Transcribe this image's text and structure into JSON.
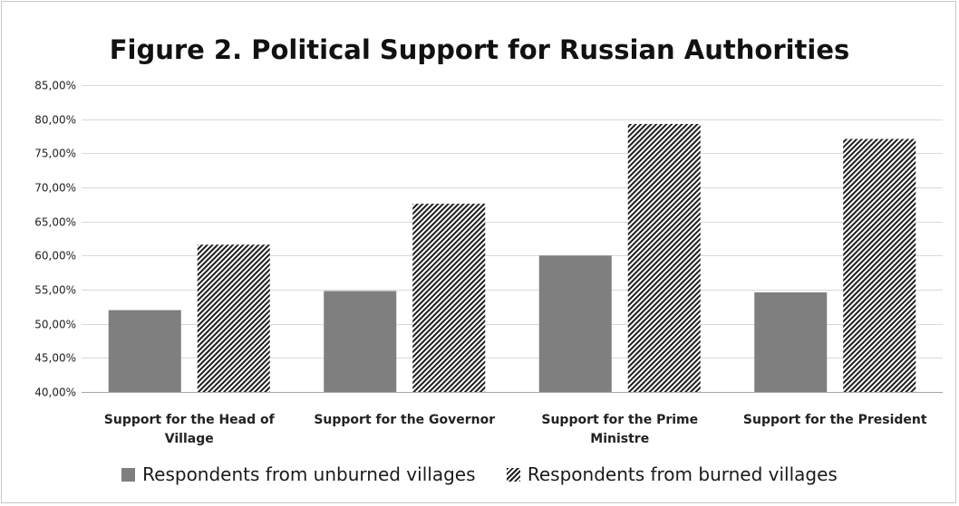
{
  "chart_data": {
    "type": "bar",
    "title": "Figure 2. Political Support for Russian Authorities",
    "categories": [
      [
        "Support for the Head of",
        "Village"
      ],
      [
        "Support for the Governor"
      ],
      [
        "Support for the Prime",
        "Ministre"
      ],
      [
        "Support for the President"
      ]
    ],
    "series": [
      {
        "name": "Respondents from unburned villages",
        "values": [
          52.0,
          54.8,
          60.0,
          54.6
        ],
        "color": "#7f7f7f",
        "pattern": "solid"
      },
      {
        "name": "Respondents from burned villages",
        "values": [
          61.6,
          67.6,
          79.3,
          77.1
        ],
        "color": "#1e1e1e",
        "pattern": "diagonal-hatch"
      }
    ],
    "ylim": [
      40,
      85
    ],
    "yticks": [
      "40,00%",
      "45,00%",
      "50,00%",
      "55,00%",
      "60,00%",
      "65,00%",
      "70,00%",
      "75,00%",
      "80,00%",
      "85,00%"
    ],
    "ytick_values": [
      40,
      45,
      50,
      55,
      60,
      65,
      70,
      75,
      80,
      85
    ],
    "xlabel": "",
    "ylabel": "",
    "grid": true,
    "legend_position": "bottom"
  }
}
